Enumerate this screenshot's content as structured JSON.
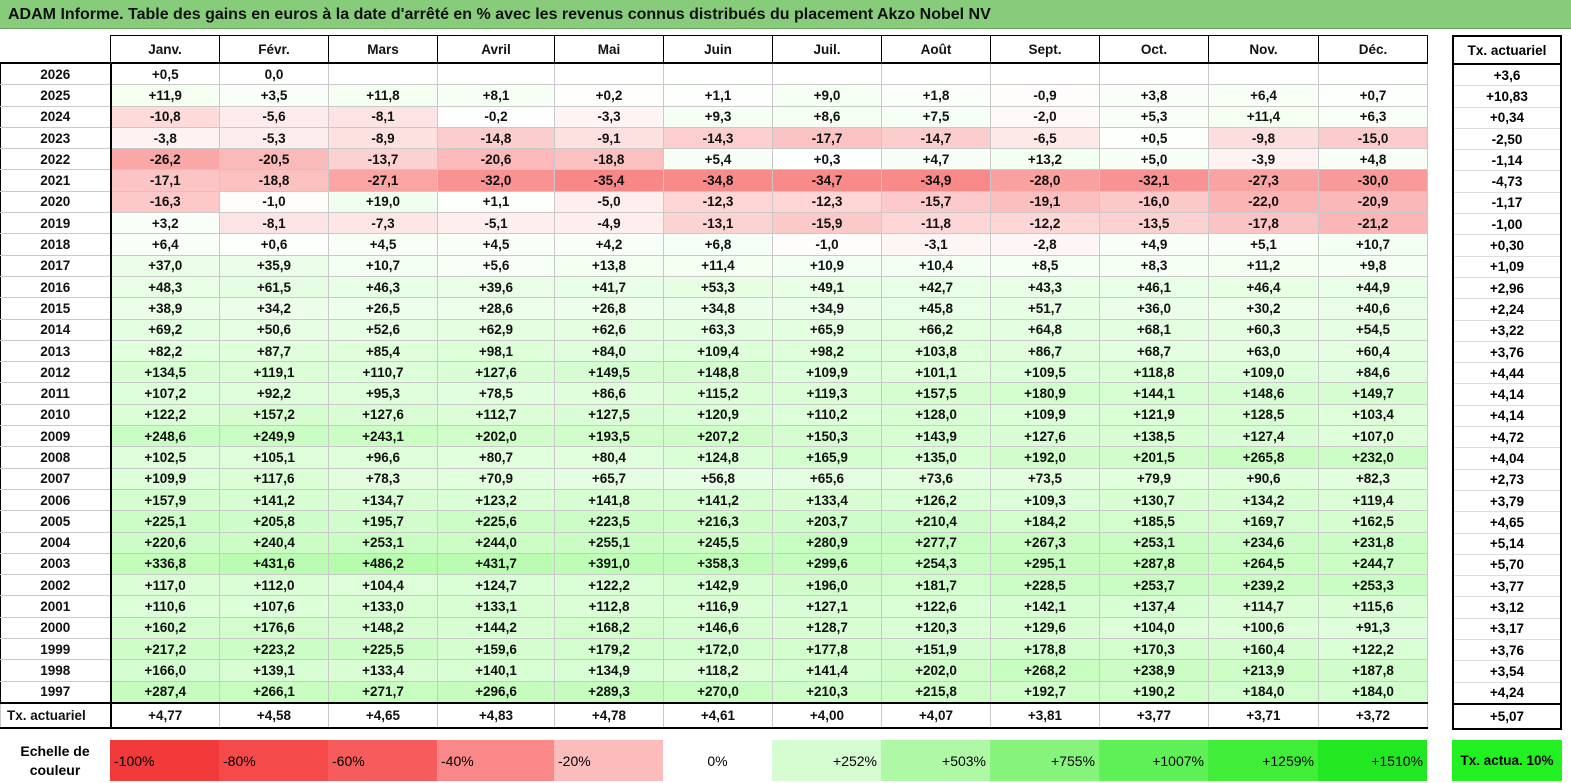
{
  "title": "ADAM Informe. Table des gains en euros à la date d'arrêté en % avec les revenus connus distribués du placement Akzo Nobel NV",
  "months": [
    "Janv.",
    "Févr.",
    "Mars",
    "Avril",
    "Mai",
    "Juin",
    "Juil.",
    "Août",
    "Sept.",
    "Oct.",
    "Nov.",
    "Déc."
  ],
  "side_header": "Tx. actuariel",
  "rows": [
    {
      "year": "2026",
      "values": [
        "+0,5",
        "0,0",
        "",
        "",
        "",
        "",
        "",
        "",
        "",
        "",
        "",
        ""
      ],
      "rate": "+3,6"
    },
    {
      "year": "2025",
      "values": [
        "+11,9",
        "+3,5",
        "+11,8",
        "+8,1",
        "+0,2",
        "+1,1",
        "+9,0",
        "+1,8",
        "-0,9",
        "+3,8",
        "+6,4",
        "+0,7"
      ],
      "rate": "+10,83"
    },
    {
      "year": "2024",
      "values": [
        "-10,8",
        "-5,6",
        "-8,1",
        "-0,2",
        "-3,3",
        "+9,3",
        "+8,6",
        "+7,5",
        "-2,0",
        "+5,3",
        "+11,4",
        "+6,3"
      ],
      "rate": "+0,34"
    },
    {
      "year": "2023",
      "values": [
        "-3,8",
        "-5,3",
        "-8,9",
        "-14,8",
        "-9,1",
        "-14,3",
        "-17,7",
        "-14,7",
        "-6,5",
        "+0,5",
        "-9,8",
        "-15,0"
      ],
      "rate": "-2,50"
    },
    {
      "year": "2022",
      "values": [
        "-26,2",
        "-20,5",
        "-13,7",
        "-20,6",
        "-18,8",
        "+5,4",
        "+0,3",
        "+4,7",
        "+13,2",
        "+5,0",
        "-3,9",
        "+4,8"
      ],
      "rate": "-1,14"
    },
    {
      "year": "2021",
      "values": [
        "-17,1",
        "-18,8",
        "-27,1",
        "-32,0",
        "-35,4",
        "-34,8",
        "-34,7",
        "-34,9",
        "-28,0",
        "-32,1",
        "-27,3",
        "-30,0"
      ],
      "rate": "-4,73"
    },
    {
      "year": "2020",
      "values": [
        "-16,3",
        "-1,0",
        "+19,0",
        "+1,1",
        "-5,0",
        "-12,3",
        "-12,3",
        "-15,7",
        "-19,1",
        "-16,0",
        "-22,0",
        "-20,9"
      ],
      "rate": "-1,17"
    },
    {
      "year": "2019",
      "values": [
        "+3,2",
        "-8,1",
        "-7,3",
        "-5,1",
        "-4,9",
        "-13,1",
        "-15,9",
        "-11,8",
        "-12,2",
        "-13,5",
        "-17,8",
        "-21,2"
      ],
      "rate": "-1,00"
    },
    {
      "year": "2018",
      "values": [
        "+6,4",
        "+0,6",
        "+4,5",
        "+4,5",
        "+4,2",
        "+6,8",
        "-1,0",
        "-3,1",
        "-2,8",
        "+4,9",
        "+5,1",
        "+10,7"
      ],
      "rate": "+0,30"
    },
    {
      "year": "2017",
      "values": [
        "+37,0",
        "+35,9",
        "+10,7",
        "+5,6",
        "+13,8",
        "+11,4",
        "+10,9",
        "+10,4",
        "+8,5",
        "+8,3",
        "+11,2",
        "+9,8"
      ],
      "rate": "+1,09"
    },
    {
      "year": "2016",
      "values": [
        "+48,3",
        "+61,5",
        "+46,3",
        "+39,6",
        "+41,7",
        "+53,3",
        "+49,1",
        "+42,7",
        "+43,3",
        "+46,1",
        "+46,4",
        "+44,9"
      ],
      "rate": "+2,96"
    },
    {
      "year": "2015",
      "values": [
        "+38,9",
        "+34,2",
        "+26,5",
        "+28,6",
        "+26,8",
        "+34,8",
        "+34,9",
        "+45,8",
        "+51,7",
        "+36,0",
        "+30,2",
        "+40,6"
      ],
      "rate": "+2,24"
    },
    {
      "year": "2014",
      "values": [
        "+69,2",
        "+50,6",
        "+52,6",
        "+62,9",
        "+62,6",
        "+63,3",
        "+65,9",
        "+66,2",
        "+64,8",
        "+68,1",
        "+60,3",
        "+54,5"
      ],
      "rate": "+3,22"
    },
    {
      "year": "2013",
      "values": [
        "+82,2",
        "+87,7",
        "+85,4",
        "+98,1",
        "+84,0",
        "+109,4",
        "+98,2",
        "+103,8",
        "+86,7",
        "+68,7",
        "+63,0",
        "+60,4"
      ],
      "rate": "+3,76"
    },
    {
      "year": "2012",
      "values": [
        "+134,5",
        "+119,1",
        "+110,7",
        "+127,6",
        "+149,5",
        "+148,8",
        "+109,9",
        "+101,1",
        "+109,5",
        "+118,8",
        "+109,0",
        "+84,6"
      ],
      "rate": "+4,44"
    },
    {
      "year": "2011",
      "values": [
        "+107,2",
        "+92,2",
        "+95,3",
        "+78,5",
        "+86,6",
        "+115,2",
        "+119,3",
        "+157,5",
        "+180,9",
        "+144,1",
        "+148,6",
        "+149,7"
      ],
      "rate": "+4,14"
    },
    {
      "year": "2010",
      "values": [
        "+122,2",
        "+157,2",
        "+127,6",
        "+112,7",
        "+127,5",
        "+120,9",
        "+110,2",
        "+128,0",
        "+109,9",
        "+121,9",
        "+128,5",
        "+103,4"
      ],
      "rate": "+4,14"
    },
    {
      "year": "2009",
      "values": [
        "+248,6",
        "+249,9",
        "+243,1",
        "+202,0",
        "+193,5",
        "+207,2",
        "+150,3",
        "+143,9",
        "+127,6",
        "+138,5",
        "+127,4",
        "+107,0"
      ],
      "rate": "+4,72"
    },
    {
      "year": "2008",
      "values": [
        "+102,5",
        "+105,1",
        "+96,6",
        "+80,7",
        "+80,4",
        "+124,8",
        "+165,9",
        "+135,0",
        "+192,0",
        "+201,5",
        "+265,8",
        "+232,0"
      ],
      "rate": "+4,04"
    },
    {
      "year": "2007",
      "values": [
        "+109,9",
        "+117,6",
        "+78,3",
        "+70,9",
        "+65,7",
        "+56,8",
        "+65,6",
        "+73,6",
        "+73,5",
        "+79,9",
        "+90,6",
        "+82,3"
      ],
      "rate": "+2,73"
    },
    {
      "year": "2006",
      "values": [
        "+157,9",
        "+141,2",
        "+134,7",
        "+123,2",
        "+141,8",
        "+141,2",
        "+133,4",
        "+126,2",
        "+109,3",
        "+130,7",
        "+134,2",
        "+119,4"
      ],
      "rate": "+3,79"
    },
    {
      "year": "2005",
      "values": [
        "+225,1",
        "+205,8",
        "+195,7",
        "+225,6",
        "+223,5",
        "+216,3",
        "+203,7",
        "+210,4",
        "+184,2",
        "+185,5",
        "+169,7",
        "+162,5"
      ],
      "rate": "+4,65"
    },
    {
      "year": "2004",
      "values": [
        "+220,6",
        "+240,4",
        "+253,1",
        "+244,0",
        "+255,1",
        "+245,5",
        "+280,9",
        "+277,7",
        "+267,3",
        "+253,1",
        "+234,6",
        "+231,8"
      ],
      "rate": "+5,14"
    },
    {
      "year": "2003",
      "values": [
        "+336,8",
        "+431,6",
        "+486,2",
        "+431,7",
        "+391,0",
        "+358,3",
        "+299,6",
        "+254,3",
        "+295,1",
        "+287,8",
        "+264,5",
        "+244,7"
      ],
      "rate": "+5,70"
    },
    {
      "year": "2002",
      "values": [
        "+117,0",
        "+112,0",
        "+104,4",
        "+124,7",
        "+122,2",
        "+142,9",
        "+196,0",
        "+181,7",
        "+228,5",
        "+253,7",
        "+239,2",
        "+253,3"
      ],
      "rate": "+3,77"
    },
    {
      "year": "2001",
      "values": [
        "+110,6",
        "+107,6",
        "+133,0",
        "+133,1",
        "+112,8",
        "+116,9",
        "+127,1",
        "+122,6",
        "+142,1",
        "+137,4",
        "+114,7",
        "+115,6"
      ],
      "rate": "+3,12"
    },
    {
      "year": "2000",
      "values": [
        "+160,2",
        "+176,6",
        "+148,2",
        "+144,2",
        "+168,2",
        "+146,6",
        "+128,7",
        "+120,3",
        "+129,6",
        "+104,0",
        "+100,6",
        "+91,3"
      ],
      "rate": "+3,17"
    },
    {
      "year": "1999",
      "values": [
        "+217,2",
        "+223,2",
        "+225,5",
        "+159,6",
        "+179,2",
        "+172,0",
        "+177,8",
        "+151,9",
        "+178,8",
        "+170,3",
        "+160,4",
        "+122,2"
      ],
      "rate": "+3,76"
    },
    {
      "year": "1998",
      "values": [
        "+166,0",
        "+139,1",
        "+133,4",
        "+140,1",
        "+134,9",
        "+118,2",
        "+141,4",
        "+202,0",
        "+268,2",
        "+238,9",
        "+213,9",
        "+187,8"
      ],
      "rate": "+3,54"
    },
    {
      "year": "1997",
      "values": [
        "+287,4",
        "+266,1",
        "+271,7",
        "+296,6",
        "+289,3",
        "+270,0",
        "+210,3",
        "+215,8",
        "+192,7",
        "+190,2",
        "+184,0",
        "+184,0"
      ],
      "rate": "+4,24"
    }
  ],
  "total": {
    "label": "Tx. actuariel",
    "values": [
      "+4,77",
      "+4,58",
      "+4,65",
      "+4,83",
      "+4,78",
      "+4,61",
      "+4,00",
      "+4,07",
      "+3,81",
      "+3,77",
      "+3,71",
      "+3,72"
    ],
    "rate": "+5,07"
  },
  "legend": {
    "label": "Echelle de couleur",
    "items": [
      {
        "text": "-100%",
        "color": "#f23a3a"
      },
      {
        "text": "-80%",
        "color": "#f44a4a"
      },
      {
        "text": "-60%",
        "color": "#f75c5c"
      },
      {
        "text": "-40%",
        "color": "#fa8888"
      },
      {
        "text": "-20%",
        "color": "#fdbcbc"
      },
      {
        "text": "0%",
        "color": "#ffffff"
      },
      {
        "text": "+252%",
        "color": "#d6fcd2"
      },
      {
        "text": "+503%",
        "color": "#aef8a6"
      },
      {
        "text": "+755%",
        "color": "#86f47c"
      },
      {
        "text": "+1007%",
        "color": "#5ef055"
      },
      {
        "text": "+1259%",
        "color": "#40ee3a"
      },
      {
        "text": "+1510%",
        "color": "#22e822"
      }
    ],
    "side_text": "Tx. actua. 10%"
  }
}
